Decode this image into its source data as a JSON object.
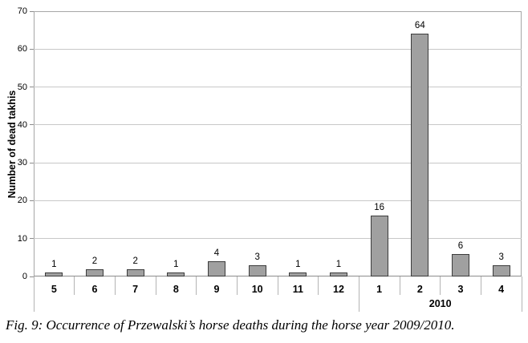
{
  "chart_data": {
    "type": "bar",
    "categories": [
      "5",
      "6",
      "7",
      "8",
      "9",
      "10",
      "11",
      "12",
      "1",
      "2",
      "3",
      "4"
    ],
    "values": [
      1,
      2,
      2,
      1,
      4,
      3,
      1,
      1,
      16,
      64,
      6,
      3
    ],
    "title": "",
    "xlabel": "",
    "ylabel": "Number of dead takhis",
    "ylim": [
      0,
      70
    ],
    "yticks": [
      0,
      10,
      20,
      30,
      40,
      50,
      60,
      70
    ],
    "grid": "horizontal",
    "legend": "none",
    "bar_fill": "#a0a0a0",
    "bar_border": "#3c3c3c",
    "gridline_color": "#c8c8c8",
    "year_group": {
      "label": "2010",
      "start_index": 8,
      "end_index": 11
    }
  },
  "caption": "Fig. 9: Occurrence of Przewalski’s horse deaths during the horse year 2009/2010."
}
